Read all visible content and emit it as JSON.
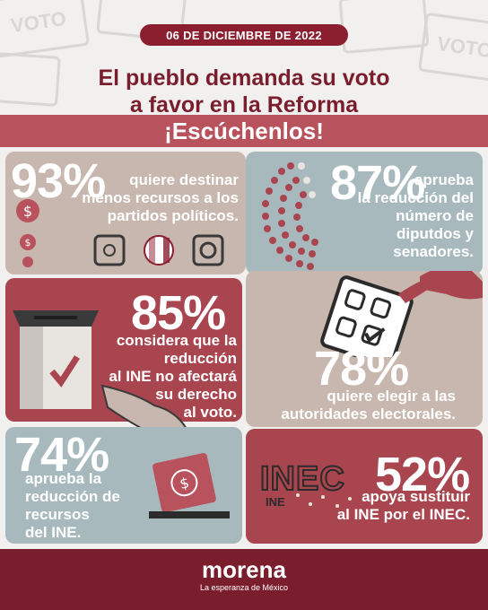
{
  "date": "06 DE DICIEMBRE DE 2022",
  "headline": {
    "line1": "El pueblo demanda su voto",
    "line2": "a favor en la Reforma"
  },
  "banner": "¡Escúchenlos!",
  "background_card_text": "VOTO",
  "stats": [
    {
      "percent": "93%",
      "text": [
        "quiere destinar",
        "menos recursos a los",
        "partidos políticos."
      ]
    },
    {
      "percent": "87%",
      "text": [
        "aprueba",
        "la reducción del",
        "número de diputdos y",
        "senadores."
      ]
    },
    {
      "percent": "85%",
      "text": [
        "considera que la",
        "reducción",
        "al INE no afectará",
        "su derecho",
        "al voto."
      ]
    },
    {
      "percent": "78%",
      "text": [
        "quiere elegir a las",
        "autoridades electorales."
      ]
    },
    {
      "percent": "74%",
      "text": [
        "aprueba la",
        "reducción de",
        "recursos",
        "del INE."
      ]
    },
    {
      "percent": "52%",
      "text": [
        "apoya sustituir",
        "al INE por el INEC."
      ]
    }
  ],
  "logos": {
    "inec": "INEC",
    "ine": "INE"
  },
  "footer": {
    "brand": "morena",
    "tagline": "La esperanza de México"
  },
  "colors": {
    "maroon": "#7a1d2c",
    "rose": "#b8525c",
    "beige": "#c8b7ae",
    "blue_gray": "#a8b9be",
    "red_panel": "#a8454f"
  }
}
